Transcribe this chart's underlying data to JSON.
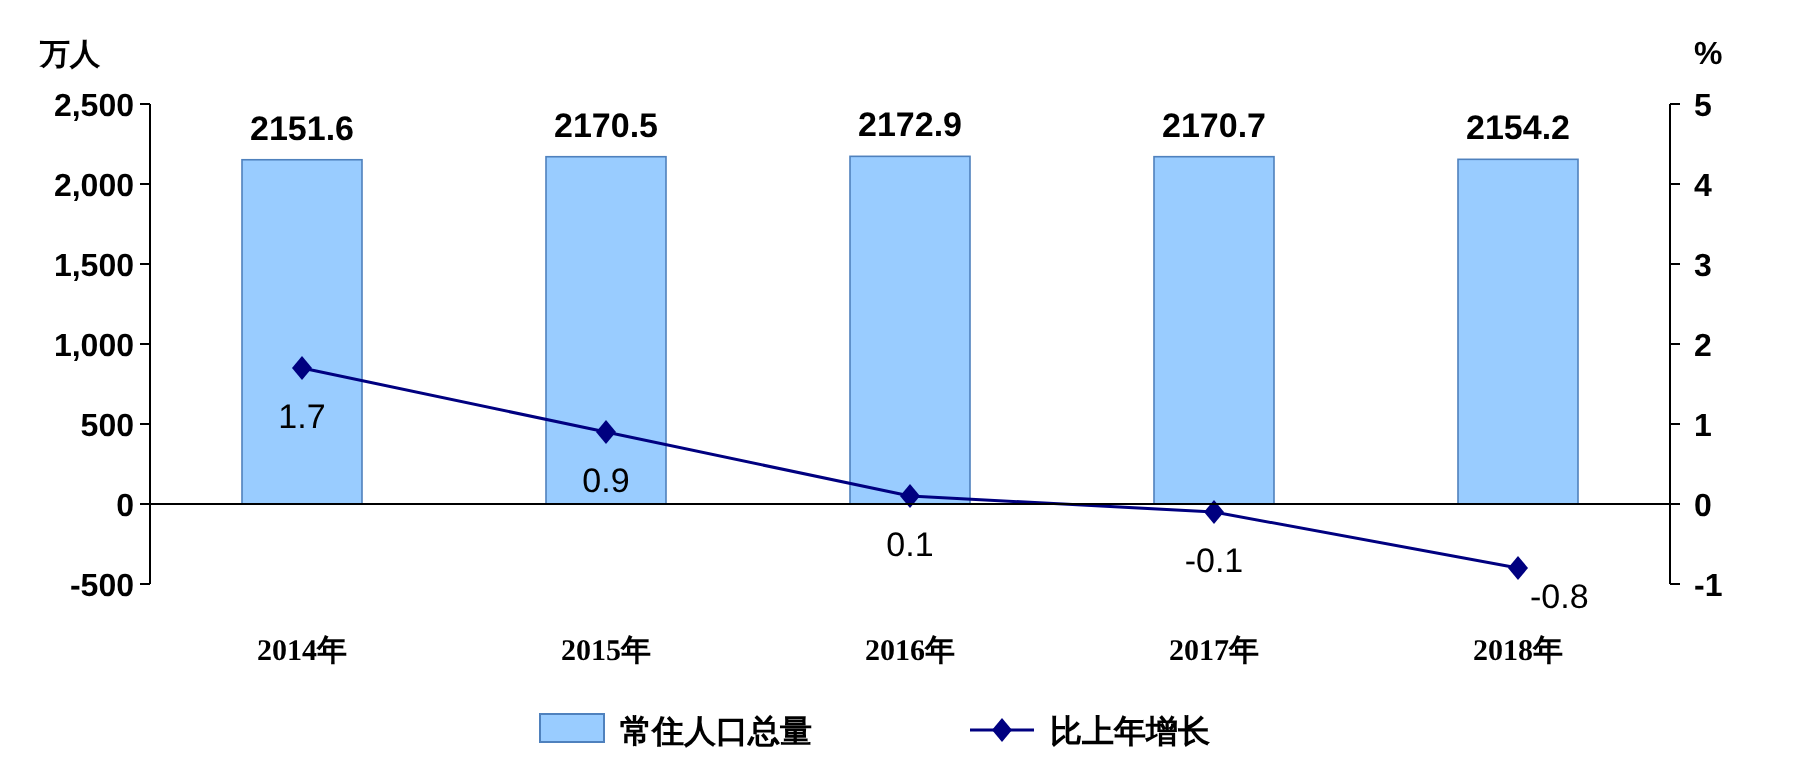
{
  "chart_data": {
    "type": "bar",
    "ylabel": "万人",
    "y2label": "%",
    "categories": [
      "2014年",
      "2015年",
      "2016年",
      "2017年",
      "2018年"
    ],
    "series": [
      {
        "name": "常住人口总量",
        "color": "#99ccff",
        "values": [
          2151.6,
          2170.5,
          2172.9,
          2170.7,
          2154.2
        ]
      },
      {
        "name": "比上年增长",
        "type": "line",
        "axis": "y2",
        "color": "#000080",
        "values": [
          1.7,
          0.9,
          0.1,
          -0.1,
          -0.8
        ]
      }
    ],
    "marker": "diamond",
    "ylim": [
      -500,
      2500
    ],
    "yticks": [
      -500,
      0,
      500,
      {
        "value": 1000,
        "label": "1,000"
      },
      {
        "value": 1500,
        "label": "1,500"
      },
      {
        "value": 2000,
        "label": "2,000"
      },
      {
        "value": 2500,
        "label": "2,500"
      }
    ],
    "y2lim": [
      -1,
      5
    ],
    "y2ticks": [
      -1,
      0,
      1,
      2,
      3,
      4,
      5
    ],
    "data_labels": true,
    "legend": "bottom"
  }
}
